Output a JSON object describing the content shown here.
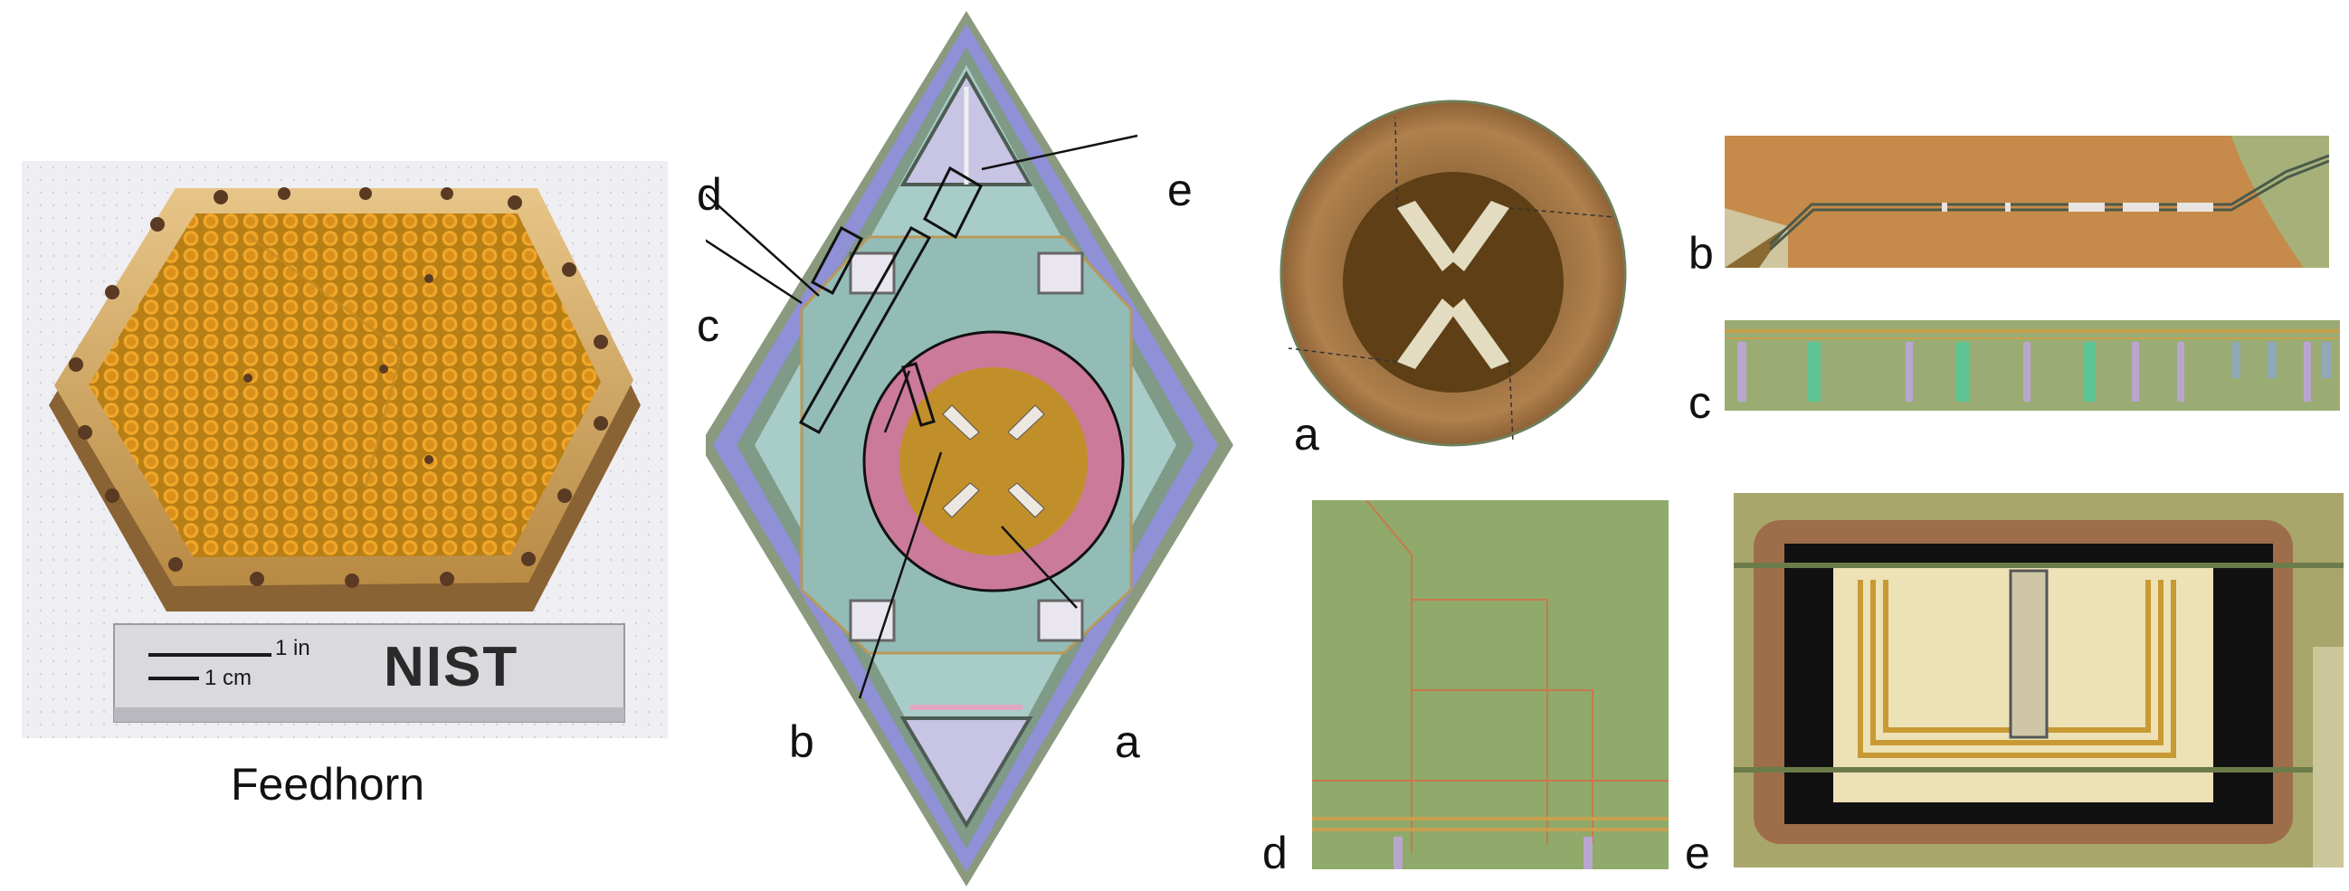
{
  "feedhorn": {
    "caption": "Feedhorn",
    "scale_inch": "1 in",
    "scale_cm": "1 cm",
    "logo_text": "NIST"
  },
  "chip": {
    "callouts": [
      "a",
      "b",
      "c",
      "d",
      "e"
    ]
  },
  "micrographs": {
    "a": "a",
    "b": "b",
    "c": "c",
    "d": "d",
    "e": "e"
  }
}
